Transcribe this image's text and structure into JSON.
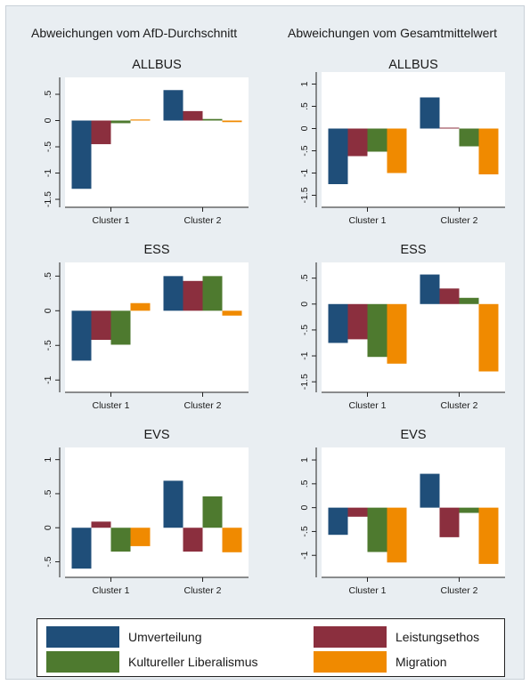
{
  "column_titles": {
    "left": "Abweichungen vom AfD-Durchschnitt",
    "right": "Abweichungen vom Gesamtmittelwert"
  },
  "legend": {
    "items": [
      {
        "label": "Umverteilung",
        "color": "#1f4e79"
      },
      {
        "label": "Leistungsethos",
        "color": "#8b2f3e"
      },
      {
        "label": "Kultureller Liberalismus",
        "color": "#4e7a2f"
      },
      {
        "label": "Migration",
        "color": "#f08a00"
      }
    ]
  },
  "chart_data": [
    {
      "type": "bar",
      "title": "ALLBUS",
      "column": "Abweichungen vom AfD-Durchschnitt",
      "categories": [
        "Cluster 1",
        "Cluster 2"
      ],
      "ylim": [
        -1.55,
        0.72
      ],
      "yticks": [
        0.5,
        0,
        -0.5,
        -1,
        -1.5
      ],
      "ytick_labels": [
        ".5",
        "0",
        "-.5",
        "-1",
        "-1.5"
      ],
      "series": [
        {
          "name": "Umverteilung",
          "values": [
            -1.3,
            0.58
          ]
        },
        {
          "name": "Leistungsethos",
          "values": [
            -0.45,
            0.18
          ]
        },
        {
          "name": "Kultureller Liberalismus",
          "values": [
            -0.05,
            0.03
          ]
        },
        {
          "name": "Migration",
          "values": [
            0.02,
            -0.03
          ]
        }
      ]
    },
    {
      "type": "bar",
      "title": "ALLBUS",
      "column": "Abweichungen vom Gesamtmittelwert",
      "categories": [
        "Cluster 1",
        "Cluster 2"
      ],
      "ylim": [
        -1.65,
        1.15
      ],
      "yticks": [
        1,
        0.5,
        0,
        -0.5,
        -1,
        -1.5
      ],
      "ytick_labels": [
        "1",
        ".5",
        "0",
        "-.5",
        "-1",
        "-1.5"
      ],
      "series": [
        {
          "name": "Umverteilung",
          "values": [
            -1.25,
            0.7
          ]
        },
        {
          "name": "Leistungsethos",
          "values": [
            -0.62,
            0.02
          ]
        },
        {
          "name": "Kultureller Liberalismus",
          "values": [
            -0.52,
            -0.4
          ]
        },
        {
          "name": "Migration",
          "values": [
            -1.0,
            -1.03
          ]
        }
      ]
    },
    {
      "type": "bar",
      "title": "ESS",
      "column": "Abweichungen vom AfD-Durchschnitt",
      "categories": [
        "Cluster 1",
        "Cluster 2"
      ],
      "ylim": [
        -1.1,
        0.62
      ],
      "yticks": [
        0.5,
        0,
        -0.5,
        -1
      ],
      "ytick_labels": [
        ".5",
        "0",
        "-.5",
        "-1"
      ],
      "series": [
        {
          "name": "Umverteilung",
          "values": [
            -0.72,
            0.5
          ]
        },
        {
          "name": "Leistungsethos",
          "values": [
            -0.42,
            0.43
          ]
        },
        {
          "name": "Kultureller Liberalismus",
          "values": [
            -0.49,
            0.5
          ]
        },
        {
          "name": "Migration",
          "values": [
            0.11,
            -0.07
          ]
        }
      ]
    },
    {
      "type": "bar",
      "title": "ESS",
      "column": "Abweichungen vom Gesamtmittelwert",
      "categories": [
        "Cluster 1",
        "Cluster 2"
      ],
      "ylim": [
        -1.6,
        0.7
      ],
      "yticks": [
        0.5,
        0,
        -0.5,
        -1,
        -1.5
      ],
      "ytick_labels": [
        ".5",
        "0",
        "-.5",
        "-1",
        "-1.5"
      ],
      "series": [
        {
          "name": "Umverteilung",
          "values": [
            -0.75,
            0.57
          ]
        },
        {
          "name": "Leistungsethos",
          "values": [
            -0.68,
            0.3
          ]
        },
        {
          "name": "Kultureller Liberalismus",
          "values": [
            -1.02,
            0.12
          ]
        },
        {
          "name": "Migration",
          "values": [
            -1.15,
            -1.3
          ]
        }
      ]
    },
    {
      "type": "bar",
      "title": "EVS",
      "column": "Abweichungen vom AfD-Durchschnitt",
      "categories": [
        "Cluster 1",
        "Cluster 2"
      ],
      "ylim": [
        -0.65,
        1.1
      ],
      "yticks": [
        1,
        0.5,
        0,
        -0.5
      ],
      "ytick_labels": [
        "1",
        ".5",
        "0",
        "-.5"
      ],
      "series": [
        {
          "name": "Umverteilung",
          "values": [
            -0.6,
            0.69
          ]
        },
        {
          "name": "Leistungsethos",
          "values": [
            0.09,
            -0.35
          ]
        },
        {
          "name": "Kultureller Liberalismus",
          "values": [
            -0.35,
            0.46
          ]
        },
        {
          "name": "Migration",
          "values": [
            -0.27,
            -0.36
          ]
        }
      ]
    },
    {
      "type": "bar",
      "title": "EVS",
      "column": "Abweichungen vom Gesamtmittelwert",
      "categories": [
        "Cluster 1",
        "Cluster 2"
      ],
      "ylim": [
        -1.35,
        1.15
      ],
      "yticks": [
        1,
        0.5,
        0,
        -0.5,
        -1
      ],
      "ytick_labels": [
        "1",
        ".5",
        "0",
        "-.5",
        "-1"
      ],
      "series": [
        {
          "name": "Umverteilung",
          "values": [
            -0.57,
            0.71
          ]
        },
        {
          "name": "Leistungsethos",
          "values": [
            -0.19,
            -0.62
          ]
        },
        {
          "name": "Kultureller Liberalismus",
          "values": [
            -0.93,
            -0.11
          ]
        },
        {
          "name": "Migration",
          "values": [
            -1.15,
            -1.18
          ]
        }
      ]
    }
  ]
}
